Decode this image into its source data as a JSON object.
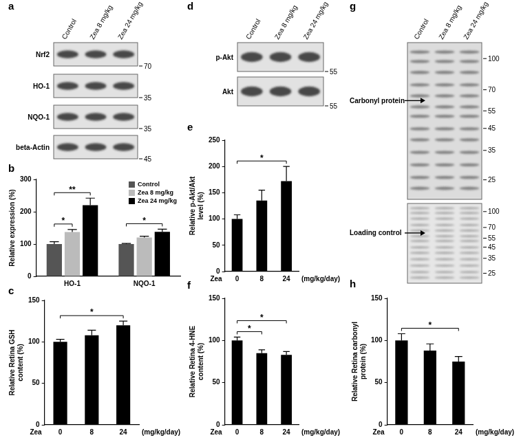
{
  "chart_data": [
    {
      "panel": "b",
      "type": "bar",
      "categories": [
        "HO-1",
        "NQO-1"
      ],
      "series": [
        {
          "name": "Control",
          "color": "#555555",
          "values": [
            100,
            100
          ],
          "errors": [
            7,
            2
          ]
        },
        {
          "name": "Zea 8 mg/kg",
          "color": "#bbbbbb",
          "values": [
            137,
            120
          ],
          "errors": [
            8,
            4
          ]
        },
        {
          "name": "Zea 24 mg/kg",
          "color": "#000000",
          "values": [
            220,
            138
          ],
          "errors": [
            22,
            8
          ]
        }
      ],
      "y_label": "Relative expression (%)",
      "ylim": [
        0,
        300
      ],
      "yticks": [
        0,
        100,
        200,
        300
      ],
      "legend": "upper right",
      "significance": [
        {
          "category": "HO-1",
          "from": "Control",
          "to": "Zea 8 mg/kg",
          "label": "*"
        },
        {
          "category": "HO-1",
          "from": "Control",
          "to": "Zea 24 mg/kg",
          "label": "**"
        },
        {
          "category": "NQO-1",
          "from": "Control",
          "to": "Zea 24 mg/kg",
          "label": "*"
        }
      ]
    },
    {
      "panel": "c",
      "type": "bar",
      "categories": [
        "0",
        "8",
        "24"
      ],
      "x_prefix": "Zea",
      "x_suffix": "(mg/kg/day)",
      "values": [
        100,
        108,
        120
      ],
      "errors": [
        3,
        6,
        5
      ],
      "color": "#000000",
      "y_label": "Relative Retina GSH content (%)",
      "ylim": [
        0,
        150
      ],
      "yticks": [
        0,
        50,
        100,
        150
      ],
      "significance": [
        {
          "from": "0",
          "to": "24",
          "label": "*"
        }
      ]
    },
    {
      "panel": "e",
      "type": "bar",
      "categories": [
        "0",
        "8",
        "24"
      ],
      "x_prefix": "Zea",
      "x_suffix": "(mg/kg/day)",
      "values": [
        100,
        135,
        172
      ],
      "errors": [
        8,
        20,
        28
      ],
      "color": "#000000",
      "y_label": "Relative p-Akt/Akt level (%)",
      "ylim": [
        0,
        250
      ],
      "yticks": [
        0,
        50,
        100,
        150,
        200,
        250
      ],
      "significance": [
        {
          "from": "0",
          "to": "24",
          "label": "*"
        }
      ]
    },
    {
      "panel": "f",
      "type": "bar",
      "categories": [
        "0",
        "8",
        "24"
      ],
      "x_prefix": "Zea",
      "x_suffix": "(mg/kg/day)",
      "values": [
        100,
        85,
        83
      ],
      "errors": [
        4,
        4,
        4
      ],
      "color": "#000000",
      "y_label": "Relative Retina 4-HNE content (%)",
      "ylim": [
        0,
        150
      ],
      "yticks": [
        0,
        50,
        100,
        150
      ],
      "significance": [
        {
          "from": "0",
          "to": "8",
          "label": "*"
        },
        {
          "from": "0",
          "to": "24",
          "label": "*"
        }
      ]
    },
    {
      "panel": "h",
      "type": "bar",
      "categories": [
        "0",
        "8",
        "24"
      ],
      "x_prefix": "Zea",
      "x_suffix": "(mg/kg/day)",
      "values": [
        100,
        88,
        75
      ],
      "errors": [
        8,
        8,
        6
      ],
      "color": "#000000",
      "y_label": "Relative Retina carbonyl protein (%)",
      "ylim": [
        0,
        150
      ],
      "yticks": [
        0,
        50,
        100,
        150
      ],
      "significance": [
        {
          "from": "0",
          "to": "24",
          "label": "*"
        }
      ]
    }
  ],
  "blots": [
    {
      "panel": "a",
      "lanes": [
        "Control",
        "Zea 8 mg/kg",
        "Zea 24 mg/kg"
      ],
      "rows": [
        {
          "label": "Nrf2",
          "marker": 70
        },
        {
          "label": "HO-1",
          "marker": 35
        },
        {
          "label": "NQO-1",
          "marker": 35
        },
        {
          "label": "beta-Actin",
          "marker": 45
        }
      ]
    },
    {
      "panel": "d",
      "lanes": [
        "Control",
        "Zea 8 mg/kg",
        "Zea 24 mg/kg"
      ],
      "rows": [
        {
          "label": "p-Akt",
          "marker": 55
        },
        {
          "label": "Akt",
          "marker": 55
        }
      ]
    },
    {
      "panel": "g",
      "lanes": [
        "Control",
        "Zea 8 mg/kg",
        "Zea 24 mg/kg"
      ],
      "sections": [
        {
          "label": "Carbonyl protein",
          "markers": [
            100,
            70,
            55,
            45,
            35,
            25
          ]
        },
        {
          "label": "Loading control",
          "markers": [
            100,
            70,
            55,
            45,
            35,
            25
          ]
        }
      ]
    }
  ]
}
